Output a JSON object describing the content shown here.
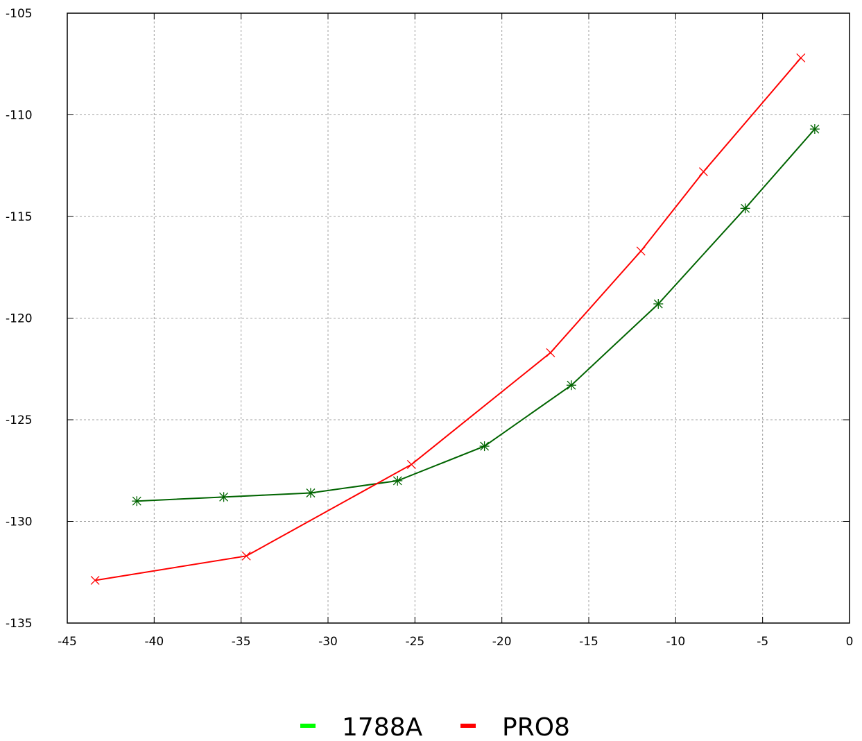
{
  "chart_data": {
    "type": "line",
    "title": "",
    "xlabel": "",
    "ylabel": "",
    "xlim": [
      -45,
      0
    ],
    "ylim": [
      -135,
      -105
    ],
    "x_ticks": [
      -45,
      -40,
      -35,
      -30,
      -25,
      -20,
      -15,
      -10,
      -5,
      0
    ],
    "y_ticks": [
      -105,
      -110,
      -115,
      -120,
      -125,
      -130,
      -135
    ],
    "x_tick_labels": [
      "-45",
      "-40",
      "-35",
      "-30",
      "-25",
      "-20",
      "-15",
      "-10",
      "-5",
      "0"
    ],
    "y_tick_labels": [
      "-105",
      "-110",
      "-115",
      "-120",
      "-125",
      "-130",
      "-135"
    ],
    "grid": true,
    "legend_position": "bottom-center",
    "series": [
      {
        "name": "1788A",
        "color": "#006400",
        "legend_color": "#00ff00",
        "marker": "asterisk",
        "points": [
          [
            -41,
            -129.0
          ],
          [
            -36,
            -128.8
          ],
          [
            -31,
            -128.6
          ],
          [
            -26,
            -128.0
          ],
          [
            -21,
            -126.3
          ],
          [
            -16,
            -123.3
          ],
          [
            -11,
            -119.3
          ],
          [
            -6,
            -114.6
          ],
          [
            -2,
            -110.7
          ]
        ]
      },
      {
        "name": "PRO8",
        "color": "#ff0000",
        "legend_color": "#ff0000",
        "marker": "cross",
        "points": [
          [
            -43.4,
            -132.9
          ],
          [
            -34.7,
            -131.7
          ],
          [
            -25.2,
            -127.2
          ],
          [
            -17.2,
            -121.7
          ],
          [
            -12.0,
            -116.7
          ],
          [
            -8.4,
            -112.8
          ],
          [
            -2.8,
            -107.2
          ]
        ]
      }
    ]
  }
}
